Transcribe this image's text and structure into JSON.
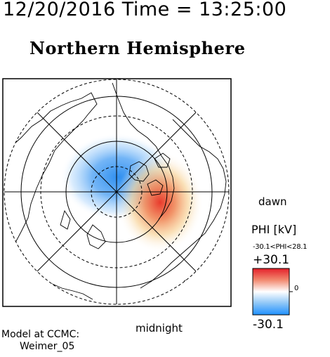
{
  "header": {
    "time_label": "12/20/2016 Time = 13:25:00",
    "hemisphere_title": "Northern Hemisphere"
  },
  "map": {
    "orientation": {
      "dawn": "dawn",
      "midnight": "midnight"
    },
    "potential_cells": [
      {
        "sign": "negative",
        "color": "#2f8ff0"
      },
      {
        "sign": "positive",
        "color": "#e83a2c"
      }
    ]
  },
  "colorbar": {
    "title": "PHI [kV]",
    "range_text": "-30.1<PHI<28.1",
    "max_label": "+30.1",
    "zero_label": "0",
    "min_label": "-30.1",
    "max_color": "#e4202a",
    "mid_color": "#ffffff",
    "min_color": "#1e90ff"
  },
  "model": {
    "line1": "Model at CCMC:",
    "line2": "Weimer_05"
  }
}
